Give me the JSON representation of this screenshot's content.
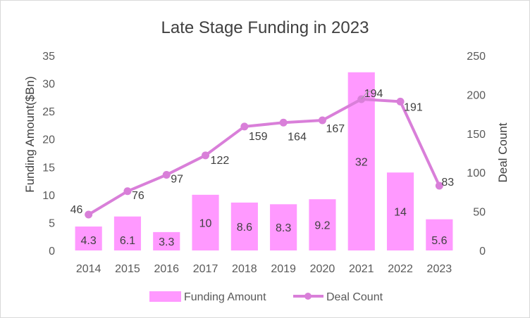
{
  "chart_data": {
    "type": "bar",
    "title": "Late Stage Funding in 2023",
    "categories": [
      "2014",
      "2015",
      "2016",
      "2017",
      "2018",
      "2019",
      "2020",
      "2021",
      "2022",
      "2023"
    ],
    "series": [
      {
        "name": "Funding Amount",
        "type": "bar",
        "axis": "left",
        "color": "#ff99ff",
        "values": [
          4.3,
          6.1,
          3.3,
          10,
          8.6,
          8.3,
          9.2,
          32,
          14,
          5.6
        ],
        "labels": [
          "4.3",
          "6.1",
          "3.3",
          "10",
          "8.6",
          "8.3",
          "9.2",
          "32",
          "14",
          "5.6"
        ]
      },
      {
        "name": "Deal Count",
        "type": "line",
        "axis": "right",
        "color": "#d97fd9",
        "values": [
          46,
          76,
          97,
          122,
          159,
          164,
          167,
          194,
          191,
          83
        ],
        "labels": [
          "46",
          "76",
          "97",
          "122",
          "159",
          "164",
          "167",
          "194",
          "191",
          "83"
        ]
      }
    ],
    "ylabel": "Funding Amount($Bn)",
    "y2label": "Deal Count",
    "ylim": [
      0,
      35
    ],
    "y2lim": [
      0,
      250
    ],
    "yticks": [
      "0",
      "5",
      "10",
      "15",
      "20",
      "25",
      "30",
      "35"
    ],
    "y2ticks": [
      "0",
      "50",
      "100",
      "150",
      "200",
      "250"
    ],
    "grid": false,
    "legend": "bottom"
  }
}
